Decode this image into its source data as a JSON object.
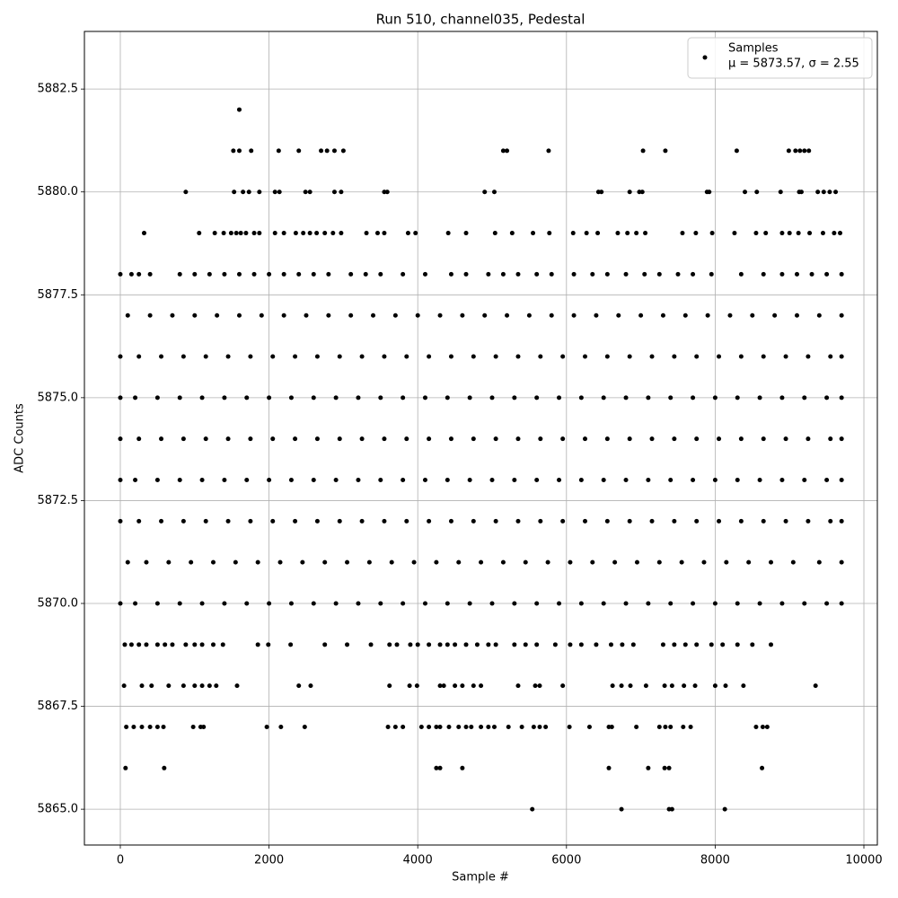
{
  "chart_data": {
    "type": "scatter",
    "title": "Run 510, channel035, Pedestal",
    "x_label": "Sample #",
    "y_label": "ADC Counts",
    "xlim": [
      -483,
      10181
    ],
    "ylim": [
      5864.13,
      5883.9
    ],
    "xticks": [
      0,
      2000,
      4000,
      6000,
      8000,
      10000
    ],
    "yticks": [
      {
        "value": 5865,
        "label": "5865.0"
      },
      {
        "value": 5867.5,
        "label": "5867.5"
      },
      {
        "value": 5870,
        "label": "5870.0"
      },
      {
        "value": 5872.5,
        "label": "5872.5"
      },
      {
        "value": 5875,
        "label": "5875.0"
      },
      {
        "value": 5877.5,
        "label": "5877.5"
      },
      {
        "value": 5880,
        "label": "5880.0"
      },
      {
        "value": 5882.5,
        "label": "5882.5"
      }
    ],
    "grid": true,
    "legend": "upper right",
    "legend_note": "μ = 5873.57, σ = 2.55",
    "x": [
      1600,
      1520,
      1600,
      1760,
      2130,
      2400,
      2700,
      2780,
      2880,
      3000,
      5150,
      5200,
      5760,
      7030,
      7330,
      8290,
      8990,
      9080,
      9140,
      9200,
      9260,
      880,
      1530,
      1650,
      1730,
      1870,
      2080,
      2140,
      2490,
      2550,
      2880,
      2970,
      3550,
      3590,
      4900,
      5030,
      6430,
      6470,
      6850,
      6980,
      7020,
      7890,
      7920,
      8400,
      8560,
      8880,
      9130,
      9160,
      9380,
      9460,
      9540,
      9620,
      320,
      1060,
      1270,
      1390,
      1490,
      1560,
      1620,
      1690,
      1800,
      1870,
      2080,
      2200,
      2360,
      2460,
      2550,
      2640,
      2750,
      2860,
      2970,
      3310,
      3460,
      3550,
      3870,
      3970,
      4410,
      4650,
      5040,
      5270,
      5550,
      5770,
      6090,
      6270,
      6420,
      6690,
      6820,
      6940,
      7060,
      7560,
      7740,
      7960,
      8260,
      8550,
      8680,
      8900,
      9000,
      9120,
      9270,
      9450,
      9600,
      9680,
      0,
      150,
      250,
      400,
      800,
      1000,
      1200,
      1400,
      1600,
      1800,
      2000,
      2200,
      2400,
      2600,
      2800,
      3100,
      3300,
      3500,
      3800,
      4100,
      4450,
      4650,
      4950,
      5150,
      5350,
      5600,
      5800,
      6100,
      6350,
      6550,
      6800,
      7050,
      7250,
      7500,
      7700,
      7950,
      8350,
      8650,
      8900,
      9100,
      9300,
      9500,
      9700,
      100,
      400,
      700,
      1000,
      1300,
      1600,
      1900,
      2200,
      2500,
      2800,
      3100,
      3400,
      3700,
      4000,
      4300,
      4600,
      4900,
      5200,
      5500,
      5800,
      6100,
      6400,
      6700,
      7000,
      7300,
      7600,
      7900,
      8200,
      8500,
      8800,
      9100,
      9400,
      9700,
      0,
      250,
      550,
      850,
      1150,
      1450,
      1750,
      2050,
      2350,
      2650,
      2950,
      3250,
      3550,
      3850,
      4150,
      4450,
      4750,
      5050,
      5350,
      5650,
      5950,
      6250,
      6550,
      6850,
      7150,
      7450,
      7750,
      8050,
      8350,
      8650,
      8950,
      9250,
      9550,
      9700,
      0,
      200,
      500,
      800,
      1100,
      1400,
      1700,
      2000,
      2300,
      2600,
      2900,
      3200,
      3500,
      3800,
      4100,
      4400,
      4700,
      5000,
      5300,
      5600,
      5900,
      6200,
      6500,
      6800,
      7100,
      7400,
      7700,
      8000,
      8300,
      8600,
      8900,
      9200,
      9500,
      9700,
      0,
      250,
      550,
      850,
      1150,
      1450,
      1750,
      2050,
      2350,
      2650,
      2950,
      3250,
      3550,
      3850,
      4150,
      4450,
      4750,
      5050,
      5350,
      5650,
      5950,
      6250,
      6550,
      6850,
      7150,
      7450,
      7750,
      8050,
      8350,
      8650,
      8950,
      9250,
      9550,
      9700,
      0,
      200,
      500,
      800,
      1100,
      1400,
      1700,
      2000,
      2300,
      2600,
      2900,
      3200,
      3500,
      3800,
      4100,
      4400,
      4700,
      5000,
      5300,
      5600,
      5900,
      6200,
      6500,
      6800,
      7100,
      7400,
      7700,
      8000,
      8300,
      8600,
      8900,
      9200,
      9500,
      9700,
      0,
      250,
      550,
      850,
      1150,
      1450,
      1750,
      2050,
      2350,
      2650,
      2950,
      3250,
      3550,
      3850,
      4150,
      4450,
      4750,
      5050,
      5350,
      5650,
      5950,
      6250,
      6550,
      6850,
      7150,
      7450,
      7750,
      8050,
      8350,
      8650,
      8950,
      9250,
      9550,
      9700,
      100,
      350,
      650,
      950,
      1250,
      1550,
      1850,
      2150,
      2450,
      2750,
      3050,
      3350,
      3650,
      3950,
      4250,
      4550,
      4850,
      5150,
      5450,
      5750,
      6050,
      6350,
      6650,
      6950,
      7250,
      7550,
      7850,
      8150,
      8450,
      8750,
      9050,
      9400,
      9700,
      0,
      200,
      500,
      800,
      1100,
      1400,
      1700,
      2000,
      2300,
      2600,
      2900,
      3200,
      3500,
      3800,
      4100,
      4400,
      4700,
      5000,
      5300,
      5600,
      5900,
      6200,
      6500,
      6800,
      7100,
      7400,
      7700,
      8000,
      8300,
      8600,
      8900,
      9200,
      9500,
      9700,
      60,
      150,
      250,
      350,
      500,
      600,
      700,
      880,
      1000,
      1100,
      1250,
      1380,
      1850,
      1990,
      2290,
      2750,
      3050,
      3370,
      3620,
      3720,
      3900,
      4000,
      4150,
      4300,
      4400,
      4500,
      4650,
      4800,
      4950,
      5050,
      5300,
      5450,
      5600,
      5850,
      6050,
      6200,
      6400,
      6600,
      6750,
      6900,
      7300,
      7450,
      7600,
      7750,
      7950,
      8100,
      8300,
      8500,
      8750,
      50,
      290,
      420,
      650,
      850,
      1000,
      1100,
      1200,
      1290,
      1570,
      2400,
      2560,
      3620,
      3890,
      3990,
      4300,
      4350,
      4500,
      4600,
      4750,
      4850,
      5350,
      5580,
      5640,
      5950,
      6620,
      6740,
      6860,
      7070,
      7320,
      7420,
      7580,
      7730,
      8000,
      8140,
      8380,
      9350,
      80,
      180,
      290,
      400,
      500,
      580,
      980,
      1080,
      1120,
      1970,
      2160,
      2480,
      3600,
      3700,
      3800,
      4050,
      4150,
      4250,
      4300,
      4420,
      4550,
      4650,
      4720,
      4850,
      4950,
      5030,
      5220,
      5400,
      5560,
      5640,
      5720,
      6040,
      6310,
      6570,
      6610,
      6940,
      7250,
      7330,
      7400,
      7570,
      7670,
      8550,
      8640,
      8700,
      70,
      590,
      4250,
      4300,
      4600,
      6570,
      7100,
      7320,
      7380,
      8630,
      5540,
      6740,
      7380,
      7420,
      8130
    ],
    "series": [
      {
        "name": "Samples",
        "color": "#000000",
        "values": [
          5882,
          5881,
          5881,
          5881,
          5881,
          5881,
          5881,
          5881,
          5881,
          5881,
          5881,
          5881,
          5881,
          5881,
          5881,
          5881,
          5881,
          5881,
          5881,
          5881,
          5881,
          5880,
          5880,
          5880,
          5880,
          5880,
          5880,
          5880,
          5880,
          5880,
          5880,
          5880,
          5880,
          5880,
          5880,
          5880,
          5880,
          5880,
          5880,
          5880,
          5880,
          5880,
          5880,
          5880,
          5880,
          5880,
          5880,
          5880,
          5880,
          5880,
          5880,
          5880,
          5879,
          5879,
          5879,
          5879,
          5879,
          5879,
          5879,
          5879,
          5879,
          5879,
          5879,
          5879,
          5879,
          5879,
          5879,
          5879,
          5879,
          5879,
          5879,
          5879,
          5879,
          5879,
          5879,
          5879,
          5879,
          5879,
          5879,
          5879,
          5879,
          5879,
          5879,
          5879,
          5879,
          5879,
          5879,
          5879,
          5879,
          5879,
          5879,
          5879,
          5879,
          5879,
          5879,
          5879,
          5879,
          5879,
          5879,
          5879,
          5879,
          5879,
          5878,
          5878,
          5878,
          5878,
          5878,
          5878,
          5878,
          5878,
          5878,
          5878,
          5878,
          5878,
          5878,
          5878,
          5878,
          5878,
          5878,
          5878,
          5878,
          5878,
          5878,
          5878,
          5878,
          5878,
          5878,
          5878,
          5878,
          5878,
          5878,
          5878,
          5878,
          5878,
          5878,
          5878,
          5878,
          5878,
          5878,
          5878,
          5878,
          5878,
          5878,
          5878,
          5878,
          5877,
          5877,
          5877,
          5877,
          5877,
          5877,
          5877,
          5877,
          5877,
          5877,
          5877,
          5877,
          5877,
          5877,
          5877,
          5877,
          5877,
          5877,
          5877,
          5877,
          5877,
          5877,
          5877,
          5877,
          5877,
          5877,
          5877,
          5877,
          5877,
          5877,
          5877,
          5877,
          5877,
          5876,
          5876,
          5876,
          5876,
          5876,
          5876,
          5876,
          5876,
          5876,
          5876,
          5876,
          5876,
          5876,
          5876,
          5876,
          5876,
          5876,
          5876,
          5876,
          5876,
          5876,
          5876,
          5876,
          5876,
          5876,
          5876,
          5876,
          5876,
          5876,
          5876,
          5876,
          5876,
          5876,
          5876,
          5875,
          5875,
          5875,
          5875,
          5875,
          5875,
          5875,
          5875,
          5875,
          5875,
          5875,
          5875,
          5875,
          5875,
          5875,
          5875,
          5875,
          5875,
          5875,
          5875,
          5875,
          5875,
          5875,
          5875,
          5875,
          5875,
          5875,
          5875,
          5875,
          5875,
          5875,
          5875,
          5875,
          5875,
          5874,
          5874,
          5874,
          5874,
          5874,
          5874,
          5874,
          5874,
          5874,
          5874,
          5874,
          5874,
          5874,
          5874,
          5874,
          5874,
          5874,
          5874,
          5874,
          5874,
          5874,
          5874,
          5874,
          5874,
          5874,
          5874,
          5874,
          5874,
          5874,
          5874,
          5874,
          5874,
          5874,
          5874,
          5873,
          5873,
          5873,
          5873,
          5873,
          5873,
          5873,
          5873,
          5873,
          5873,
          5873,
          5873,
          5873,
          5873,
          5873,
          5873,
          5873,
          5873,
          5873,
          5873,
          5873,
          5873,
          5873,
          5873,
          5873,
          5873,
          5873,
          5873,
          5873,
          5873,
          5873,
          5873,
          5873,
          5873,
          5872,
          5872,
          5872,
          5872,
          5872,
          5872,
          5872,
          5872,
          5872,
          5872,
          5872,
          5872,
          5872,
          5872,
          5872,
          5872,
          5872,
          5872,
          5872,
          5872,
          5872,
          5872,
          5872,
          5872,
          5872,
          5872,
          5872,
          5872,
          5872,
          5872,
          5872,
          5872,
          5872,
          5872,
          5871,
          5871,
          5871,
          5871,
          5871,
          5871,
          5871,
          5871,
          5871,
          5871,
          5871,
          5871,
          5871,
          5871,
          5871,
          5871,
          5871,
          5871,
          5871,
          5871,
          5871,
          5871,
          5871,
          5871,
          5871,
          5871,
          5871,
          5871,
          5871,
          5871,
          5871,
          5871,
          5871,
          5870,
          5870,
          5870,
          5870,
          5870,
          5870,
          5870,
          5870,
          5870,
          5870,
          5870,
          5870,
          5870,
          5870,
          5870,
          5870,
          5870,
          5870,
          5870,
          5870,
          5870,
          5870,
          5870,
          5870,
          5870,
          5870,
          5870,
          5870,
          5870,
          5870,
          5870,
          5870,
          5870,
          5870,
          5869,
          5869,
          5869,
          5869,
          5869,
          5869,
          5869,
          5869,
          5869,
          5869,
          5869,
          5869,
          5869,
          5869,
          5869,
          5869,
          5869,
          5869,
          5869,
          5869,
          5869,
          5869,
          5869,
          5869,
          5869,
          5869,
          5869,
          5869,
          5869,
          5869,
          5869,
          5869,
          5869,
          5869,
          5869,
          5869,
          5869,
          5869,
          5869,
          5869,
          5869,
          5869,
          5869,
          5869,
          5869,
          5869,
          5869,
          5869,
          5869,
          5868,
          5868,
          5868,
          5868,
          5868,
          5868,
          5868,
          5868,
          5868,
          5868,
          5868,
          5868,
          5868,
          5868,
          5868,
          5868,
          5868,
          5868,
          5868,
          5868,
          5868,
          5868,
          5868,
          5868,
          5868,
          5868,
          5868,
          5868,
          5868,
          5868,
          5868,
          5868,
          5868,
          5868,
          5868,
          5868,
          5868,
          5867,
          5867,
          5867,
          5867,
          5867,
          5867,
          5867,
          5867,
          5867,
          5867,
          5867,
          5867,
          5867,
          5867,
          5867,
          5867,
          5867,
          5867,
          5867,
          5867,
          5867,
          5867,
          5867,
          5867,
          5867,
          5867,
          5867,
          5867,
          5867,
          5867,
          5867,
          5867,
          5867,
          5867,
          5867,
          5867,
          5867,
          5867,
          5867,
          5867,
          5867,
          5867,
          5867,
          5867,
          5866,
          5866,
          5866,
          5866,
          5866,
          5866,
          5866,
          5866,
          5866,
          5866,
          5865,
          5865,
          5865,
          5865,
          5865
        ]
      }
    ]
  }
}
